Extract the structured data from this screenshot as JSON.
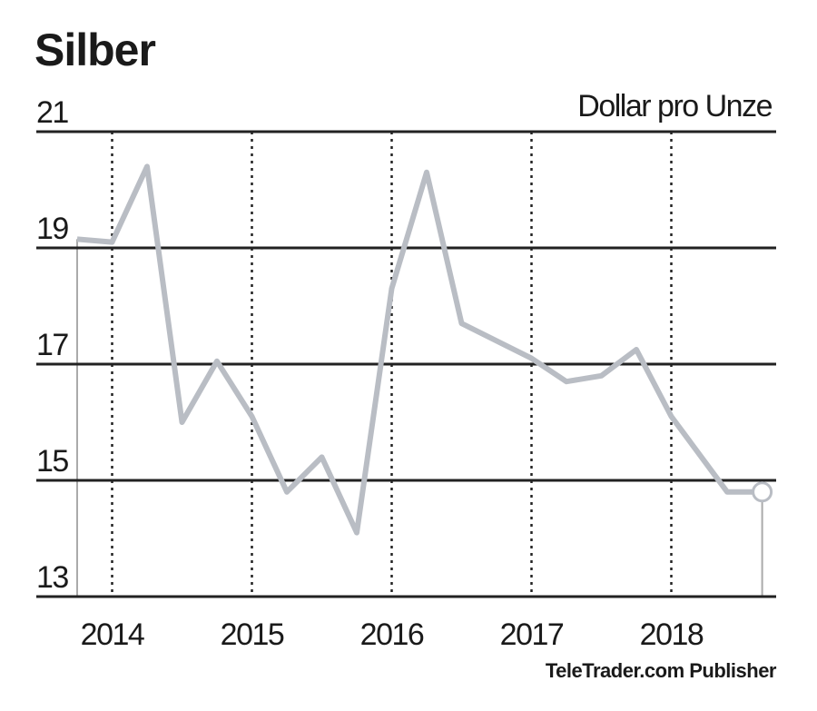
{
  "chart_data": {
    "type": "line",
    "title": "Silber",
    "unit_label": "Dollar pro Unze",
    "source": "TeleTrader.com Publisher",
    "x": [
      2013.75,
      2014.0,
      2014.25,
      2014.5,
      2014.75,
      2015.0,
      2015.25,
      2015.5,
      2015.75,
      2016.0,
      2016.25,
      2016.5,
      2017.0,
      2017.25,
      2017.5,
      2017.75,
      2018.0,
      2018.4,
      2018.65
    ],
    "values": [
      19.15,
      19.1,
      20.4,
      16.0,
      17.05,
      16.1,
      14.8,
      15.4,
      14.1,
      18.3,
      20.3,
      17.7,
      17.1,
      16.7,
      16.8,
      17.25,
      16.1,
      14.8,
      14.8
    ],
    "color": "#b9bdc4",
    "xlim": [
      2013.75,
      2018.75
    ],
    "xticks": [
      2014,
      2015,
      2016,
      2017,
      2018
    ],
    "ylim": [
      13,
      21
    ],
    "yticks": [
      13,
      15,
      17,
      19,
      21
    ],
    "grid": true
  }
}
